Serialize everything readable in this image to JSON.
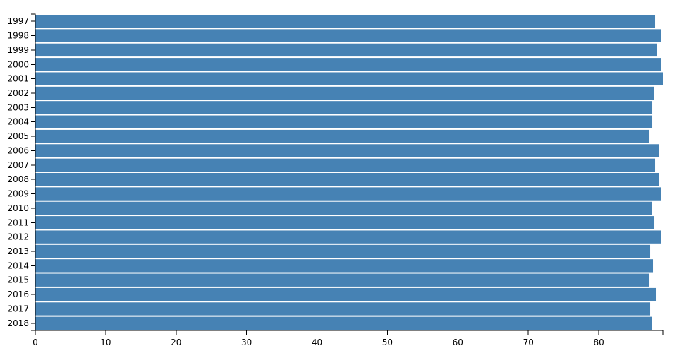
{
  "chart_data": {
    "type": "bar",
    "orientation": "horizontal",
    "color": "#4682b4",
    "categories": [
      "1997",
      "1998",
      "1999",
      "2000",
      "2001",
      "2002",
      "2003",
      "2004",
      "2005",
      "2006",
      "2007",
      "2008",
      "2009",
      "2010",
      "2011",
      "2012",
      "2013",
      "2014",
      "2015",
      "2016",
      "2017",
      "2018"
    ],
    "values": [
      88.0,
      88.8,
      88.2,
      88.9,
      89.1,
      87.8,
      87.6,
      87.6,
      87.2,
      88.6,
      88.0,
      88.5,
      88.8,
      87.5,
      87.9,
      88.8,
      87.3,
      87.7,
      87.2,
      88.1,
      87.3,
      87.5
    ],
    "xlim": [
      0,
      89.1
    ],
    "xticks": [
      0,
      10,
      20,
      30,
      40,
      50,
      60,
      70,
      80
    ]
  }
}
